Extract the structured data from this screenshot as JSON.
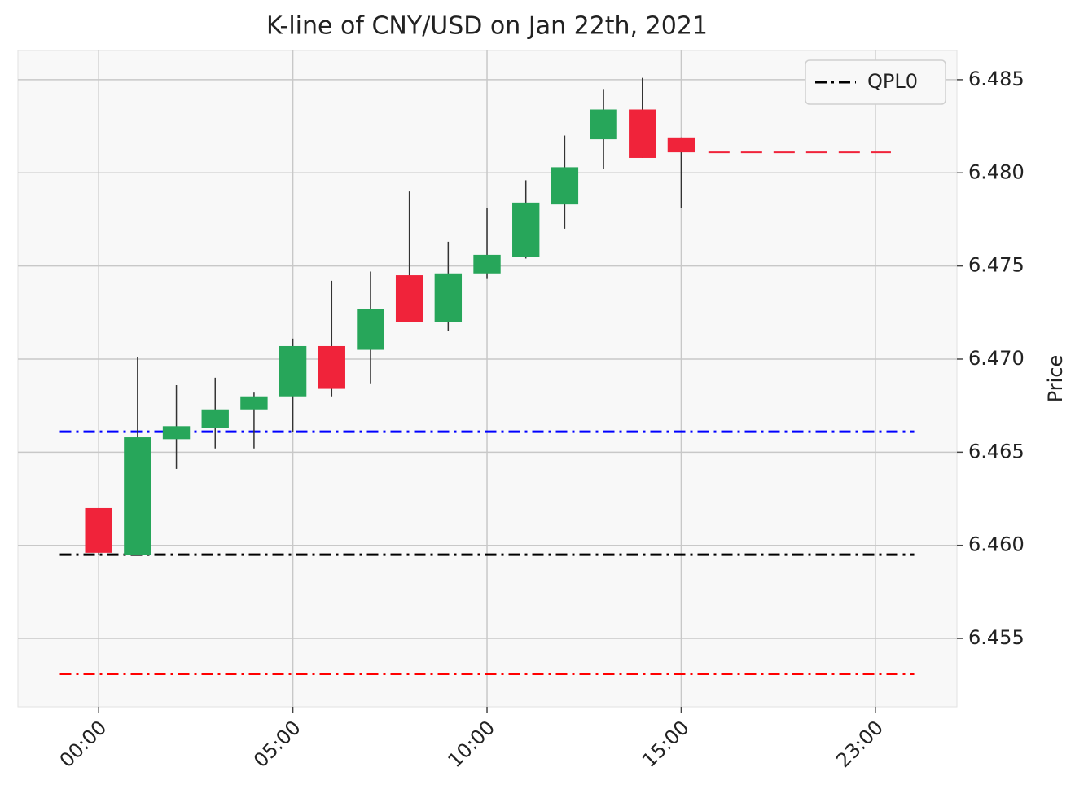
{
  "chart_data": {
    "type": "candlestick",
    "title": "K-line of CNY/USD on Jan 22th, 2021",
    "y_label": "Price",
    "x": [
      0,
      1,
      2,
      3,
      4,
      5,
      6,
      7,
      8,
      9,
      10,
      11,
      12,
      13,
      14,
      15
    ],
    "open": [
      6.462,
      6.4595,
      6.4657,
      6.4663,
      6.4673,
      6.468,
      6.4707,
      6.4705,
      6.4745,
      6.472,
      6.4746,
      6.4755,
      6.4783,
      6.4818,
      6.4834,
      6.4819
    ],
    "high": [
      6.462,
      6.4701,
      6.4686,
      6.469,
      6.4682,
      6.4711,
      6.4742,
      6.4747,
      6.479,
      6.4763,
      6.4781,
      6.4796,
      6.482,
      6.4845,
      6.4851,
      6.4819
    ],
    "low": [
      6.4595,
      6.4595,
      6.4641,
      6.4652,
      6.4652,
      6.4661,
      6.468,
      6.4687,
      6.472,
      6.4715,
      6.4743,
      6.4754,
      6.477,
      6.4802,
      6.4808,
      6.4781
    ],
    "close": [
      6.4596,
      6.4658,
      6.4664,
      6.4673,
      6.468,
      6.4707,
      6.4684,
      6.4727,
      6.472,
      6.4746,
      6.4756,
      6.4784,
      6.4803,
      6.4834,
      6.4808,
      6.4811
    ],
    "up_color": "#27a65a",
    "down_color": "#f0233a",
    "hlines": [
      {
        "name": "QPL0",
        "value": 6.4595,
        "color": "#000000",
        "xrange": [
          -1,
          21
        ]
      },
      {
        "value": 6.4661,
        "color": "#0000ff",
        "xrange": [
          -1,
          21
        ]
      },
      {
        "value": 6.4531,
        "color": "#ff0000",
        "xrange": [
          -1,
          21
        ]
      }
    ],
    "last_line": {
      "value": 6.4811,
      "color": "#f0233a",
      "xrange": [
        15.7,
        20.4
      ]
    },
    "xlim": [
      -2.08,
      22.1
    ],
    "xticks": [
      {
        "value": 0,
        "label": "00:00"
      },
      {
        "value": 5,
        "label": "05:00"
      },
      {
        "value": 10,
        "label": "10:00"
      },
      {
        "value": 15,
        "label": "15:00"
      },
      {
        "value": 20,
        "label": "23:00"
      }
    ],
    "ylim": [
      6.45133,
      6.48657
    ],
    "yticks": [
      {
        "value": 6.455,
        "label": "6.455"
      },
      {
        "value": 6.46,
        "label": "6.460"
      },
      {
        "value": 6.465,
        "label": "6.465"
      },
      {
        "value": 6.47,
        "label": "6.470"
      },
      {
        "value": 6.475,
        "label": "6.475"
      },
      {
        "value": 6.48,
        "label": "6.480"
      },
      {
        "value": 6.485,
        "label": "6.485"
      }
    ],
    "grid": true,
    "legend": "upper right"
  }
}
